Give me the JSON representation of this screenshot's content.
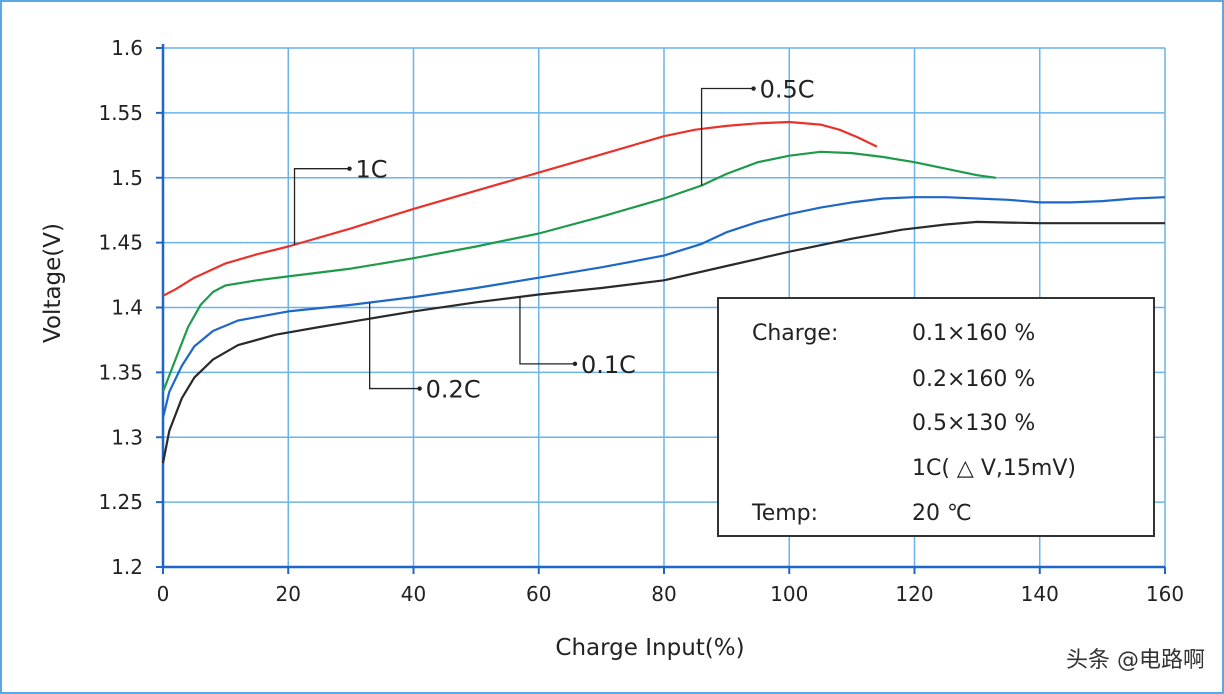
{
  "chart_data": {
    "type": "line",
    "title": "",
    "xlabel": "Charge Input(%)",
    "ylabel": "Voltage(V)",
    "xlim": [
      0,
      160
    ],
    "ylim": [
      1.2,
      1.6
    ],
    "xticks": [
      "0",
      "20",
      "40",
      "60",
      "80",
      "100",
      "120",
      "140",
      "160"
    ],
    "yticks": [
      "1.2",
      "1.25",
      "1.3",
      "1.35",
      "1.4",
      "1.45",
      "1.5",
      "1.55",
      "1.6"
    ],
    "grid": true,
    "series": [
      {
        "name": "1C",
        "color": "#e8322b",
        "points": [
          [
            0,
            1.409
          ],
          [
            2,
            1.414
          ],
          [
            5,
            1.423
          ],
          [
            10,
            1.434
          ],
          [
            15,
            1.441
          ],
          [
            20,
            1.447
          ],
          [
            30,
            1.461
          ],
          [
            40,
            1.476
          ],
          [
            50,
            1.49
          ],
          [
            60,
            1.504
          ],
          [
            70,
            1.518
          ],
          [
            80,
            1.532
          ],
          [
            85,
            1.537
          ],
          [
            90,
            1.54
          ],
          [
            95,
            1.542
          ],
          [
            100,
            1.543
          ],
          [
            105,
            1.541
          ],
          [
            108,
            1.537
          ],
          [
            111,
            1.531
          ],
          [
            114,
            1.524
          ]
        ]
      },
      {
        "name": "0.5C",
        "color": "#1f9a4a",
        "points": [
          [
            0,
            1.335
          ],
          [
            2,
            1.36
          ],
          [
            4,
            1.385
          ],
          [
            6,
            1.402
          ],
          [
            8,
            1.412
          ],
          [
            10,
            1.417
          ],
          [
            15,
            1.421
          ],
          [
            20,
            1.424
          ],
          [
            30,
            1.43
          ],
          [
            40,
            1.438
          ],
          [
            50,
            1.447
          ],
          [
            60,
            1.457
          ],
          [
            70,
            1.47
          ],
          [
            80,
            1.484
          ],
          [
            86,
            1.494
          ],
          [
            90,
            1.503
          ],
          [
            95,
            1.512
          ],
          [
            100,
            1.517
          ],
          [
            105,
            1.52
          ],
          [
            110,
            1.519
          ],
          [
            115,
            1.516
          ],
          [
            120,
            1.512
          ],
          [
            125,
            1.507
          ],
          [
            130,
            1.502
          ],
          [
            133,
            1.5
          ]
        ]
      },
      {
        "name": "0.2C",
        "color": "#1e67c8",
        "points": [
          [
            0,
            1.315
          ],
          [
            1,
            1.335
          ],
          [
            3,
            1.355
          ],
          [
            5,
            1.37
          ],
          [
            8,
            1.382
          ],
          [
            12,
            1.39
          ],
          [
            20,
            1.397
          ],
          [
            30,
            1.402
          ],
          [
            40,
            1.408
          ],
          [
            50,
            1.415
          ],
          [
            60,
            1.423
          ],
          [
            70,
            1.431
          ],
          [
            80,
            1.44
          ],
          [
            86,
            1.449
          ],
          [
            90,
            1.458
          ],
          [
            95,
            1.466
          ],
          [
            100,
            1.472
          ],
          [
            105,
            1.477
          ],
          [
            110,
            1.481
          ],
          [
            115,
            1.484
          ],
          [
            120,
            1.485
          ],
          [
            125,
            1.485
          ],
          [
            130,
            1.484
          ],
          [
            135,
            1.483
          ],
          [
            140,
            1.481
          ],
          [
            145,
            1.481
          ],
          [
            150,
            1.482
          ],
          [
            155,
            1.484
          ],
          [
            160,
            1.485
          ]
        ]
      },
      {
        "name": "0.1C",
        "color": "#2a2a2a",
        "points": [
          [
            0,
            1.28
          ],
          [
            1,
            1.305
          ],
          [
            3,
            1.33
          ],
          [
            5,
            1.346
          ],
          [
            8,
            1.36
          ],
          [
            12,
            1.371
          ],
          [
            18,
            1.379
          ],
          [
            25,
            1.385
          ],
          [
            30,
            1.389
          ],
          [
            40,
            1.397
          ],
          [
            50,
            1.404
          ],
          [
            60,
            1.41
          ],
          [
            70,
            1.415
          ],
          [
            80,
            1.421
          ],
          [
            90,
            1.432
          ],
          [
            100,
            1.443
          ],
          [
            110,
            1.453
          ],
          [
            118,
            1.46
          ],
          [
            125,
            1.464
          ],
          [
            130,
            1.466
          ],
          [
            140,
            1.465
          ],
          [
            150,
            1.465
          ],
          [
            160,
            1.465
          ]
        ]
      }
    ],
    "annotations": [
      {
        "text": "1C",
        "series": "1C",
        "x": 21
      },
      {
        "text": "0.5C",
        "series": "0.5C",
        "x": 86
      },
      {
        "text": "0.2C",
        "series": "0.2C",
        "x": 33
      },
      {
        "text": "0.1C",
        "series": "0.1C",
        "x": 57
      }
    ],
    "legend_box": {
      "placement": "lower-right",
      "rows": [
        {
          "label": "Charge:",
          "value": "0.1×160 %"
        },
        {
          "label": "",
          "value": "0.2×160 %"
        },
        {
          "label": "",
          "value": "0.5×130 %"
        },
        {
          "label": "",
          "value": "1C( △ V,15mV)"
        },
        {
          "label": "Temp:",
          "value": "20 ℃"
        }
      ]
    }
  },
  "watermark": "头条 @电路啊"
}
